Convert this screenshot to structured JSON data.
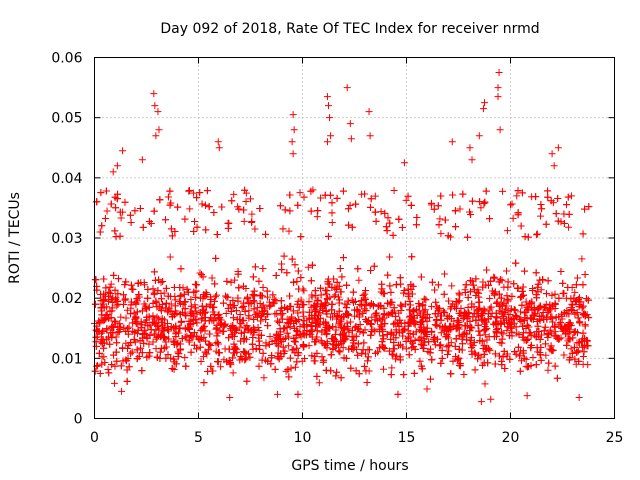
{
  "chart_data": {
    "type": "scatter",
    "title": "Day 092 of 2018, Rate Of TEC Index for receiver nrmd",
    "xlabel": "GPS time / hours",
    "ylabel": "ROTI / TECUs",
    "xlim": [
      0,
      25
    ],
    "ylim": [
      0,
      0.06
    ],
    "x_ticks": [
      0,
      5,
      10,
      15,
      20,
      25
    ],
    "x_tick_labels": [
      "0",
      "5",
      "10",
      "15",
      "20",
      "25"
    ],
    "y_ticks": [
      0,
      0.01,
      0.02,
      0.03,
      0.04,
      0.05,
      0.06
    ],
    "y_tick_labels": [
      "0",
      "0.01",
      "0.02",
      "0.03",
      "0.04",
      "0.05",
      "0.06"
    ],
    "grid": true,
    "marker": "plus",
    "color": "#ff0000",
    "series": [
      {
        "name": "ROTI",
        "x_range": [
          0.0,
          23.8
        ],
        "typical_range": [
          0.005,
          0.03
        ],
        "typical_median": 0.016,
        "points": [
          {
            "x": 2.85,
            "y": 0.054
          },
          {
            "x": 2.9,
            "y": 0.052
          },
          {
            "x": 3.05,
            "y": 0.051
          },
          {
            "x": 3.1,
            "y": 0.048
          },
          {
            "x": 2.95,
            "y": 0.047
          },
          {
            "x": 5.95,
            "y": 0.046
          },
          {
            "x": 6.0,
            "y": 0.045
          },
          {
            "x": 9.55,
            "y": 0.0505
          },
          {
            "x": 9.6,
            "y": 0.048
          },
          {
            "x": 9.5,
            "y": 0.046
          },
          {
            "x": 9.55,
            "y": 0.044
          },
          {
            "x": 11.2,
            "y": 0.0535
          },
          {
            "x": 11.25,
            "y": 0.052
          },
          {
            "x": 11.3,
            "y": 0.05
          },
          {
            "x": 11.35,
            "y": 0.047
          },
          {
            "x": 11.2,
            "y": 0.046
          },
          {
            "x": 12.15,
            "y": 0.055
          },
          {
            "x": 12.3,
            "y": 0.049
          },
          {
            "x": 12.35,
            "y": 0.0465
          },
          {
            "x": 13.2,
            "y": 0.051
          },
          {
            "x": 13.25,
            "y": 0.047
          },
          {
            "x": 14.9,
            "y": 0.0425
          },
          {
            "x": 17.2,
            "y": 0.046
          },
          {
            "x": 18.05,
            "y": 0.045
          },
          {
            "x": 18.15,
            "y": 0.043
          },
          {
            "x": 18.7,
            "y": 0.0515
          },
          {
            "x": 18.75,
            "y": 0.0525
          },
          {
            "x": 18.5,
            "y": 0.047
          },
          {
            "x": 19.45,
            "y": 0.0575
          },
          {
            "x": 19.4,
            "y": 0.055
          },
          {
            "x": 19.4,
            "y": 0.0535
          },
          {
            "x": 19.5,
            "y": 0.048
          },
          {
            "x": 22.3,
            "y": 0.045
          },
          {
            "x": 22.0,
            "y": 0.044
          },
          {
            "x": 22.1,
            "y": 0.042
          },
          {
            "x": 1.35,
            "y": 0.0445
          },
          {
            "x": 0.9,
            "y": 0.041
          },
          {
            "x": 1.1,
            "y": 0.042
          },
          {
            "x": 2.3,
            "y": 0.043
          },
          {
            "x": 7.5,
            "y": 0.0365
          },
          {
            "x": 10.5,
            "y": 0.038
          },
          {
            "x": 16.2,
            "y": 0.0355
          },
          {
            "x": 20.3,
            "y": 0.037
          },
          {
            "x": 20.0,
            "y": 0.0355
          },
          {
            "x": 6.5,
            "y": 0.0035
          },
          {
            "x": 18.6,
            "y": 0.0028
          },
          {
            "x": 19.05,
            "y": 0.0032
          },
          {
            "x": 20.8,
            "y": 0.0038
          },
          {
            "x": 23.3,
            "y": 0.0035
          },
          {
            "x": 1.3,
            "y": 0.0045
          },
          {
            "x": 8.8,
            "y": 0.004
          }
        ]
      }
    ]
  }
}
